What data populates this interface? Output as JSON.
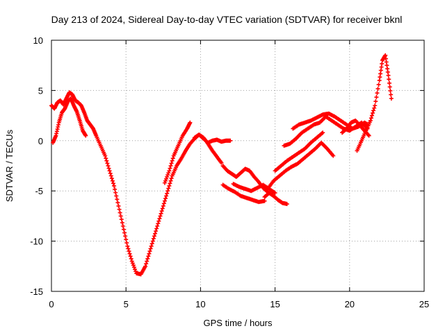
{
  "chart_data": {
    "type": "scatter",
    "title": "Day 213 of 2024, Sidereal Day-to-day VTEC variation (SDTVAR) for receiver bknl",
    "xlabel": "GPS time / hours",
    "ylabel": "SDTVAR / TECUs",
    "xlim": [
      0,
      25
    ],
    "ylim": [
      -15,
      10
    ],
    "xticks": [
      0,
      5,
      10,
      15,
      20,
      25
    ],
    "xtick_labels": [
      "0",
      "5",
      "10",
      "15",
      "20",
      "25"
    ],
    "yticks": [
      -15,
      -10,
      -5,
      0,
      5,
      10
    ],
    "ytick_labels": [
      "-15",
      "-10",
      "-5",
      "0",
      "5",
      "10"
    ],
    "grid": true,
    "marker": "+",
    "series": [
      {
        "name": "main-trace",
        "color": "#ff0000",
        "x": [
          0.0,
          0.2,
          0.4,
          0.6,
          0.8,
          1.0,
          1.2,
          1.4,
          1.6,
          1.8,
          2.0,
          2.2,
          2.4,
          2.6,
          2.8,
          3.0,
          3.3,
          3.6,
          3.9,
          4.2,
          4.5,
          4.8,
          5.1,
          5.4,
          5.7,
          6.0,
          6.3,
          6.6,
          6.9,
          7.2,
          7.5,
          7.8,
          8.1,
          8.4,
          8.7,
          9.0,
          9.3,
          9.6,
          9.9,
          10.2,
          10.5,
          10.8,
          11.1,
          11.4
        ],
        "y": [
          3.5,
          3.2,
          3.8,
          4.0,
          3.6,
          4.2,
          4.8,
          4.6,
          4.0,
          3.8,
          3.5,
          2.8,
          2.0,
          1.6,
          1.2,
          0.5,
          -0.5,
          -1.5,
          -3.0,
          -4.5,
          -6.5,
          -8.5,
          -10.5,
          -12.0,
          -13.2,
          -13.3,
          -12.5,
          -11.0,
          -9.5,
          -8.0,
          -6.5,
          -5.0,
          -3.5,
          -2.5,
          -1.8,
          -1.0,
          -0.3,
          0.2,
          0.6,
          0.3,
          -0.3,
          -1.0,
          -1.6,
          -2.2
        ]
      },
      {
        "name": "secondary-trace-a",
        "color": "#ff0000",
        "x": [
          0.1,
          0.3,
          0.5,
          0.7,
          0.9,
          1.1,
          1.3,
          1.5,
          1.7,
          1.9,
          2.1,
          2.3
        ],
        "y": [
          -0.2,
          0.5,
          1.8,
          2.8,
          3.2,
          3.9,
          4.2,
          3.5,
          2.9,
          2.0,
          1.0,
          0.5
        ]
      },
      {
        "name": "secondary-trace-b",
        "color": "#ff0000",
        "x": [
          7.6,
          7.9,
          8.2,
          8.5,
          8.8,
          9.1,
          9.3
        ],
        "y": [
          -4.2,
          -3.0,
          -1.5,
          -0.5,
          0.5,
          1.2,
          1.8
        ]
      },
      {
        "name": "secondary-trace-c",
        "color": "#ff0000",
        "x": [
          9.6,
          9.9,
          10.2,
          10.5,
          10.8,
          11.1,
          11.4,
          11.7,
          12.0
        ],
        "y": [
          0.3,
          0.6,
          0.2,
          -0.2,
          0.0,
          0.1,
          -0.1,
          0.0,
          0.0
        ]
      },
      {
        "name": "afternoon-trace-a",
        "color": "#ff0000",
        "x": [
          11.5,
          11.8,
          12.1,
          12.4,
          12.7,
          13.0,
          13.3,
          13.6,
          13.9,
          14.2,
          14.5
        ],
        "y": [
          -2.5,
          -3.0,
          -3.3,
          -3.6,
          -3.2,
          -2.8,
          -3.0,
          -3.6,
          -4.1,
          -4.7,
          -5.1
        ]
      },
      {
        "name": "afternoon-trace-b",
        "color": "#ff0000",
        "x": [
          11.5,
          11.9,
          12.3,
          12.7,
          13.1,
          13.5,
          13.9,
          14.3
        ],
        "y": [
          -4.4,
          -4.8,
          -5.1,
          -5.5,
          -5.7,
          -5.9,
          -6.1,
          -6.0
        ]
      },
      {
        "name": "afternoon-trace-c",
        "color": "#ff0000",
        "x": [
          12.2,
          12.6,
          13.0,
          13.4,
          13.8,
          14.2,
          14.6,
          15.0
        ],
        "y": [
          -4.3,
          -4.6,
          -4.8,
          -5.0,
          -4.7,
          -4.4,
          -4.8,
          -5.2
        ]
      },
      {
        "name": "afternoon-trace-d",
        "color": "#ff0000",
        "x": [
          14.3,
          14.6,
          14.9,
          15.2,
          15.5,
          15.8
        ],
        "y": [
          -5.6,
          -5.2,
          -5.5,
          -5.9,
          -6.2,
          -6.3
        ]
      },
      {
        "name": "evening-trace-a",
        "color": "#ff0000",
        "x": [
          14.5,
          14.9,
          15.3,
          15.7,
          16.1,
          16.5,
          16.9,
          17.3,
          17.7,
          18.1,
          18.5,
          18.9
        ],
        "y": [
          -4.8,
          -4.0,
          -3.5,
          -3.0,
          -2.6,
          -2.3,
          -1.8,
          -1.3,
          -0.8,
          -0.2,
          -0.8,
          -1.5
        ]
      },
      {
        "name": "evening-trace-b",
        "color": "#ff0000",
        "x": [
          15.0,
          15.4,
          15.8,
          16.2,
          16.6,
          17.0,
          17.4,
          17.8,
          18.2
        ],
        "y": [
          -3.0,
          -2.5,
          -2.0,
          -1.6,
          -1.2,
          -0.8,
          -0.2,
          0.3,
          0.8
        ]
      },
      {
        "name": "evening-trace-c",
        "color": "#ff0000",
        "x": [
          15.6,
          16.0,
          16.4,
          16.8,
          17.2,
          17.6,
          18.0,
          18.4,
          18.8,
          19.2,
          19.6,
          20.0,
          20.4,
          20.8,
          21.2
        ],
        "y": [
          -0.5,
          -0.3,
          0.2,
          0.8,
          1.2,
          1.6,
          1.8,
          2.4,
          2.0,
          1.6,
          1.2,
          1.0,
          1.4,
          1.8,
          1.2
        ]
      },
      {
        "name": "evening-trace-d",
        "color": "#ff0000",
        "x": [
          16.2,
          16.6,
          17.0,
          17.4,
          17.8,
          18.2,
          18.6,
          19.0,
          19.4,
          19.8,
          20.2,
          20.6,
          21.0,
          21.2
        ],
        "y": [
          1.2,
          1.6,
          1.8,
          2.0,
          2.3,
          2.6,
          2.7,
          2.4,
          2.0,
          1.6,
          1.2,
          1.4,
          1.8,
          1.6
        ]
      },
      {
        "name": "late-trace",
        "color": "#ff0000",
        "x": [
          20.5,
          20.8,
          21.1,
          21.4,
          21.7,
          22.0,
          22.2,
          22.4,
          22.6,
          22.8
        ],
        "y": [
          -1.0,
          0.0,
          1.0,
          2.0,
          3.5,
          6.0,
          8.0,
          8.5,
          6.5,
          4.2
        ]
      },
      {
        "name": "late-trace-b",
        "color": "#ff0000",
        "x": [
          19.5,
          19.8,
          20.1,
          20.4,
          20.7,
          21.0,
          21.3
        ],
        "y": [
          0.8,
          1.2,
          1.8,
          2.0,
          1.5,
          1.0,
          0.5
        ]
      }
    ]
  }
}
